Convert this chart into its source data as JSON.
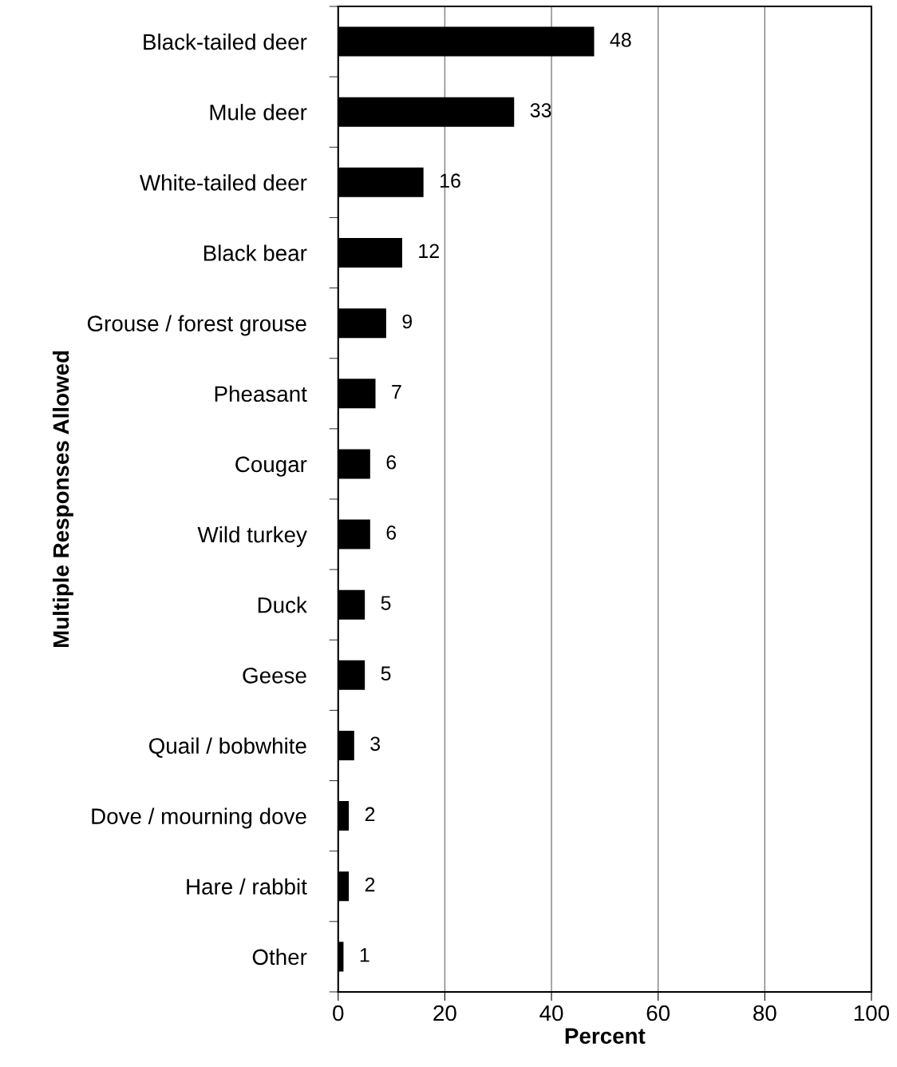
{
  "chart_data": {
    "type": "bar",
    "orientation": "horizontal",
    "xlabel": "Percent",
    "ylabel": "Multiple Responses Allowed",
    "categories": [
      "Black-tailed deer",
      "Mule deer",
      "White-tailed deer",
      "Black bear",
      "Grouse / forest grouse",
      "Pheasant",
      "Cougar",
      "Wild turkey",
      "Duck",
      "Geese",
      "Quail / bobwhite",
      "Dove / mourning dove",
      "Hare / rabbit",
      "Other"
    ],
    "values": [
      48,
      33,
      16,
      12,
      9,
      7,
      6,
      6,
      5,
      5,
      3,
      2,
      2,
      1
    ],
    "color": "#000000",
    "data_labels": true,
    "xlim": [
      0,
      100
    ],
    "xticks": [
      0,
      20,
      40,
      60,
      80,
      100
    ],
    "grid": "x",
    "legend": false
  }
}
